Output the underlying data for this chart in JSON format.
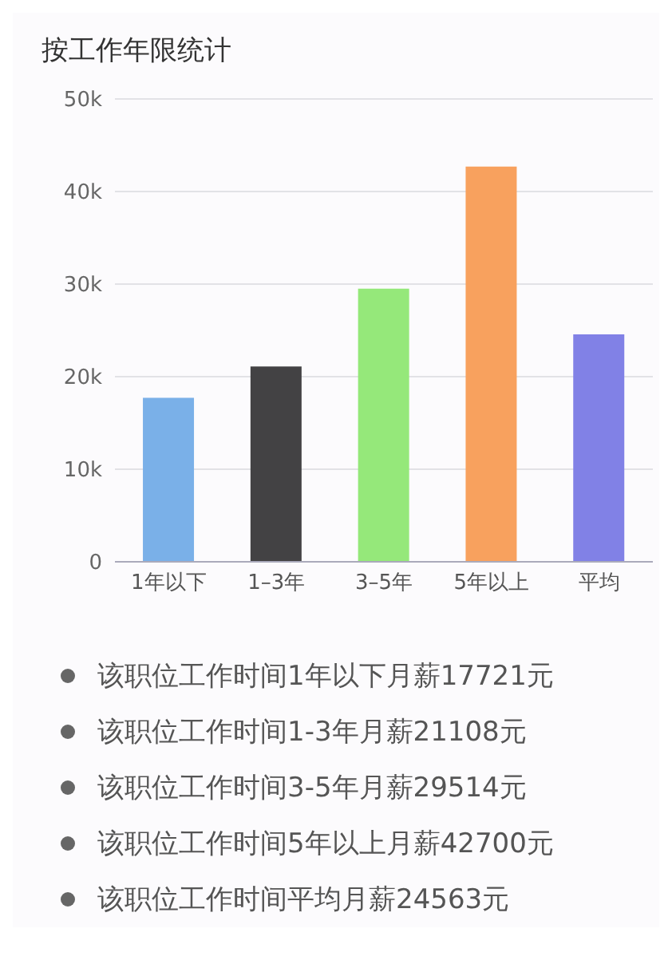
{
  "chart_data": {
    "type": "bar",
    "title": "按工作年限统计",
    "categories": [
      "1年以下",
      "1–3年",
      "3–5年",
      "5年以上",
      "平均"
    ],
    "values": [
      17721,
      21108,
      29514,
      42700,
      24563
    ],
    "colors": [
      "#7ab0e8",
      "#434244",
      "#95e87a",
      "#f8a15e",
      "#8181e6"
    ],
    "ylim": [
      0,
      50000
    ],
    "yticks": [
      0,
      {
        "value": 10000,
        "label": "10k"
      },
      {
        "value": 20000,
        "label": "20k"
      },
      {
        "value": 30000,
        "label": "30k"
      },
      {
        "value": 40000,
        "label": "40k"
      },
      {
        "value": 50000,
        "label": "50k"
      }
    ],
    "grid": "y",
    "annotations": [
      "该职位工作时间1年以下月薪17721元",
      "该职位工作时间1-3年月薪21108元",
      "该职位工作时间3-5年月薪29514元",
      "该职位工作时间5年以上月薪42700元",
      "该职位工作时间平均月薪24563元"
    ]
  }
}
